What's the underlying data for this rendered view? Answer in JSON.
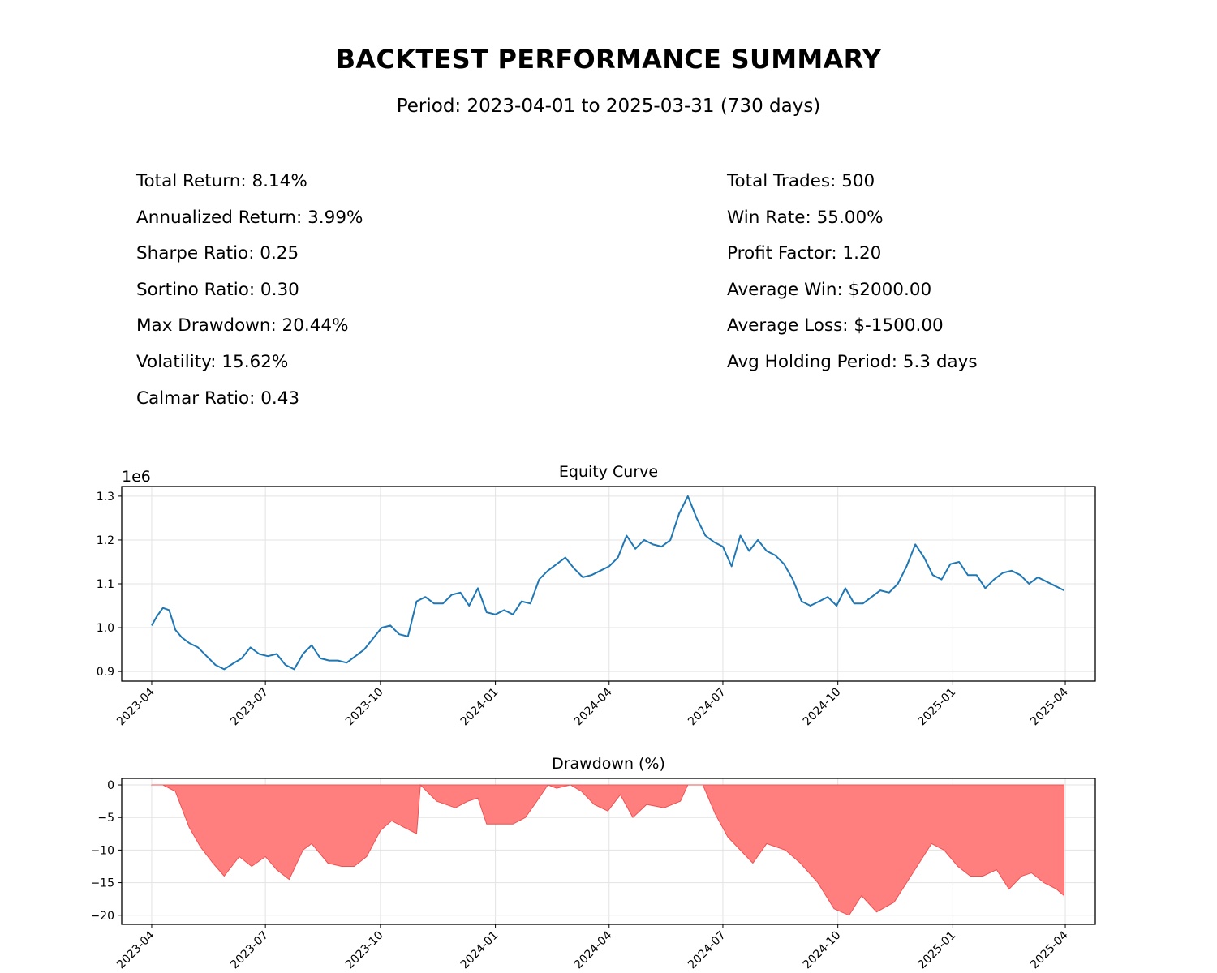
{
  "title": "BACKTEST PERFORMANCE SUMMARY",
  "subtitle": "Period: 2023-04-01 to 2025-03-31 (730 days)",
  "metrics_left": [
    "Total Return: 8.14%",
    "Annualized Return: 3.99%",
    "Sharpe Ratio: 0.25",
    "Sortino Ratio: 0.30",
    "Max Drawdown: 20.44%",
    "Volatility: 15.62%",
    "Calmar Ratio: 0.43"
  ],
  "metrics_right": [
    "Total Trades: 500",
    "Win Rate: 55.00%",
    "Profit Factor: 1.20",
    "Average Win: $2000.00",
    "Average Loss: $-1500.00",
    "Avg Holding Period: 5.3 days"
  ],
  "colors": {
    "equity_line": "#1f77b4",
    "drawdown_fill": "#ff7f7f",
    "drawdown_edge": "#f05050",
    "grid": "#e3e3e3"
  },
  "chart_data": [
    {
      "type": "line",
      "title": "Equity Curve",
      "xlabel": "",
      "ylabel": "",
      "offset_label": "1e6",
      "x_ticks": [
        "2023-04",
        "2023-07",
        "2023-10",
        "2024-01",
        "2024-04",
        "2024-07",
        "2024-10",
        "2025-01",
        "2025-04"
      ],
      "y_ticks": [
        "0.9",
        "1.0",
        "1.1",
        "1.2",
        "1.3"
      ],
      "xlim": [
        "2023-03-08",
        "2025-04-25"
      ],
      "ylim": [
        0.878,
        1.322
      ],
      "grid": true,
      "series": [
        {
          "x": [
            "2023-04-01",
            "2023-04-05",
            "2023-04-10",
            "2023-04-15",
            "2023-04-20",
            "2023-04-25",
            "2023-05-01",
            "2023-05-08",
            "2023-05-15",
            "2023-05-22",
            "2023-05-29",
            "2023-06-05",
            "2023-06-12",
            "2023-06-19",
            "2023-06-26",
            "2023-07-03",
            "2023-07-10",
            "2023-07-17",
            "2023-07-24",
            "2023-07-31",
            "2023-08-07",
            "2023-08-14",
            "2023-08-21",
            "2023-08-28",
            "2023-09-04",
            "2023-09-11",
            "2023-09-18",
            "2023-09-25",
            "2023-10-02",
            "2023-10-09",
            "2023-10-16",
            "2023-10-23",
            "2023-10-30",
            "2023-11-06",
            "2023-11-13",
            "2023-11-20",
            "2023-11-27",
            "2023-12-04",
            "2023-12-11",
            "2023-12-18",
            "2023-12-25",
            "2024-01-01",
            "2024-01-08",
            "2024-01-15",
            "2024-01-22",
            "2024-01-29",
            "2024-02-05",
            "2024-02-12",
            "2024-02-19",
            "2024-02-26",
            "2024-03-04",
            "2024-03-11",
            "2024-03-18",
            "2024-03-25",
            "2024-04-01",
            "2024-04-08",
            "2024-04-15",
            "2024-04-22",
            "2024-04-29",
            "2024-05-06",
            "2024-05-13",
            "2024-05-20",
            "2024-05-27",
            "2024-06-03",
            "2024-06-10",
            "2024-06-17",
            "2024-06-24",
            "2024-07-01",
            "2024-07-08",
            "2024-07-15",
            "2024-07-22",
            "2024-07-29",
            "2024-08-05",
            "2024-08-12",
            "2024-08-19",
            "2024-08-26",
            "2024-09-02",
            "2024-09-09",
            "2024-09-16",
            "2024-09-23",
            "2024-09-30",
            "2024-10-07",
            "2024-10-14",
            "2024-10-21",
            "2024-10-28",
            "2024-11-04",
            "2024-11-11",
            "2024-11-18",
            "2024-11-25",
            "2024-12-02",
            "2024-12-09",
            "2024-12-16",
            "2024-12-23",
            "2024-12-30",
            "2025-01-06",
            "2025-01-13",
            "2025-01-20",
            "2025-01-27",
            "2025-02-03",
            "2025-02-10",
            "2025-02-17",
            "2025-02-24",
            "2025-03-03",
            "2025-03-10",
            "2025-03-17",
            "2025-03-24",
            "2025-03-31"
          ],
          "values": [
            1.005,
            1.025,
            1.045,
            1.04,
            0.995,
            0.978,
            0.965,
            0.955,
            0.935,
            0.915,
            0.905,
            0.918,
            0.93,
            0.955,
            0.94,
            0.935,
            0.94,
            0.915,
            0.905,
            0.94,
            0.96,
            0.93,
            0.925,
            0.925,
            0.92,
            0.935,
            0.95,
            0.975,
            1.0,
            1.005,
            0.985,
            0.98,
            1.06,
            1.07,
            1.055,
            1.055,
            1.075,
            1.08,
            1.05,
            1.09,
            1.035,
            1.03,
            1.04,
            1.03,
            1.06,
            1.055,
            1.11,
            1.13,
            1.145,
            1.16,
            1.135,
            1.115,
            1.12,
            1.13,
            1.14,
            1.16,
            1.21,
            1.18,
            1.2,
            1.19,
            1.185,
            1.2,
            1.26,
            1.3,
            1.25,
            1.21,
            1.195,
            1.185,
            1.14,
            1.21,
            1.175,
            1.2,
            1.175,
            1.165,
            1.145,
            1.11,
            1.06,
            1.05,
            1.06,
            1.07,
            1.05,
            1.09,
            1.055,
            1.055,
            1.07,
            1.085,
            1.08,
            1.1,
            1.14,
            1.19,
            1.16,
            1.12,
            1.11,
            1.145,
            1.15,
            1.12,
            1.12,
            1.09,
            1.11,
            1.125,
            1.13,
            1.12,
            1.1,
            1.115,
            1.105,
            1.095,
            1.085
          ]
        }
      ]
    },
    {
      "type": "area",
      "title": "Drawdown (%)",
      "xlabel": "",
      "ylabel": "",
      "x_ticks": [
        "2023-04",
        "2023-07",
        "2023-10",
        "2024-01",
        "2024-04",
        "2024-07",
        "2024-10",
        "2025-01",
        "2025-04"
      ],
      "y_ticks": [
        "0",
        "−5",
        "−10",
        "−15",
        "−20"
      ],
      "xlim": [
        "2023-03-08",
        "2025-04-25"
      ],
      "ylim": [
        -21.4,
        1.0
      ],
      "grid": true,
      "series": [
        {
          "x": [
            "2023-04-01",
            "2023-04-10",
            "2023-04-20",
            "2023-05-01",
            "2023-05-10",
            "2023-05-20",
            "2023-05-29",
            "2023-06-10",
            "2023-06-20",
            "2023-07-01",
            "2023-07-10",
            "2023-07-20",
            "2023-07-31",
            "2023-08-07",
            "2023-08-20",
            "2023-08-31",
            "2023-09-10",
            "2023-09-20",
            "2023-10-01",
            "2023-10-10",
            "2023-10-20",
            "2023-10-30",
            "2023-11-02",
            "2023-11-15",
            "2023-11-30",
            "2023-12-10",
            "2023-12-18",
            "2023-12-25",
            "2024-01-05",
            "2024-01-15",
            "2024-01-25",
            "2024-02-05",
            "2024-02-12",
            "2024-02-19",
            "2024-03-01",
            "2024-03-10",
            "2024-03-20",
            "2024-03-31",
            "2024-04-10",
            "2024-04-20",
            "2024-05-01",
            "2024-05-15",
            "2024-05-28",
            "2024-06-03",
            "2024-06-15",
            "2024-06-25",
            "2024-07-05",
            "2024-07-15",
            "2024-07-25",
            "2024-08-05",
            "2024-08-20",
            "2024-09-01",
            "2024-09-15",
            "2024-09-28",
            "2024-10-10",
            "2024-10-20",
            "2024-11-01",
            "2024-11-15",
            "2024-11-25",
            "2024-12-05",
            "2024-12-15",
            "2024-12-25",
            "2025-01-05",
            "2025-01-15",
            "2025-01-25",
            "2025-02-05",
            "2025-02-15",
            "2025-02-25",
            "2025-03-05",
            "2025-03-15",
            "2025-03-25",
            "2025-03-31"
          ],
          "values": [
            0,
            0,
            -1.0,
            -6.5,
            -9.5,
            -12.0,
            -14.0,
            -11.0,
            -12.5,
            -11.0,
            -13.0,
            -14.5,
            -10.0,
            -9.0,
            -12.0,
            -12.5,
            -12.5,
            -11.0,
            -7.0,
            -5.5,
            -6.5,
            -7.5,
            0,
            -2.5,
            -3.5,
            -2.5,
            -2.0,
            -6.0,
            -6.0,
            -6.0,
            -5.0,
            -2.0,
            0,
            -0.5,
            0,
            -1.0,
            -3.0,
            -4.0,
            -1.5,
            -5.0,
            -3.0,
            -3.5,
            -2.5,
            0,
            0,
            -4.5,
            -8.0,
            -10.0,
            -12.0,
            -9.0,
            -10.0,
            -12.0,
            -15.0,
            -19.0,
            -20.0,
            -17.0,
            -19.5,
            -18.0,
            -15.0,
            -12.0,
            -9.0,
            -10.0,
            -12.5,
            -14.0,
            -14.0,
            -13.0,
            -16.0,
            -14.0,
            -13.5,
            -15.0,
            -16.0,
            -17.0
          ]
        }
      ]
    }
  ]
}
